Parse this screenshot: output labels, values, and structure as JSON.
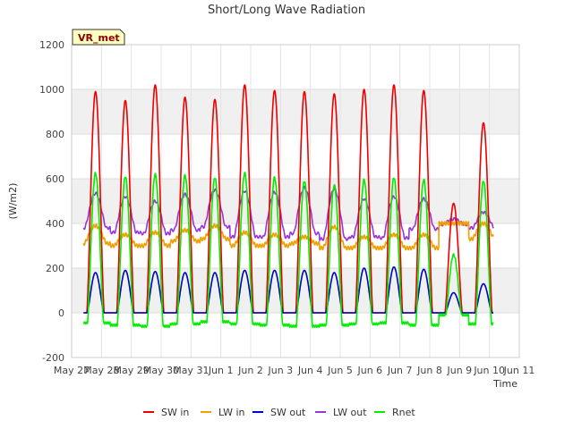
{
  "chart_data": {
    "type": "line",
    "title": "Short/Long Wave Radiation",
    "xlabel": "Time",
    "ylabel": "(W/m2)",
    "badge": "VR_met",
    "xlim": [
      0,
      15
    ],
    "ylim": [
      -200,
      1200
    ],
    "yticks": [
      -200,
      0,
      200,
      400,
      600,
      800,
      1000,
      1200
    ],
    "xticks": [
      {
        "v": 0,
        "label": "May 27"
      },
      {
        "v": 1,
        "label": "May 28"
      },
      {
        "v": 2,
        "label": "May 29"
      },
      {
        "v": 3,
        "label": "May 30"
      },
      {
        "v": 4,
        "label": "May 31"
      },
      {
        "v": 5,
        "label": "Jun 1"
      },
      {
        "v": 6,
        "label": "Jun 2"
      },
      {
        "v": 7,
        "label": "Jun 3"
      },
      {
        "v": 8,
        "label": "Jun 4"
      },
      {
        "v": 9,
        "label": "Jun 5"
      },
      {
        "v": 10,
        "label": "Jun 6"
      },
      {
        "v": 11,
        "label": "Jun 7"
      },
      {
        "v": 12,
        "label": "Jun 8"
      },
      {
        "v": 13,
        "label": "Jun 9"
      },
      {
        "v": 14,
        "label": "Jun 10"
      },
      {
        "v": 15,
        "label": "Jun 11"
      }
    ],
    "grid": true,
    "legend_position": "bottom",
    "daily": {
      "days": [
        0.8,
        1.8,
        2.8,
        3.8,
        4.8,
        5.8,
        6.8,
        7.8,
        8.8,
        9.8,
        10.8,
        11.8,
        12.8,
        13.8
      ],
      "sw_in_peak": [
        990,
        950,
        1020,
        965,
        955,
        1020,
        995,
        990,
        980,
        1000,
        1020,
        995,
        490,
        850
      ],
      "lw_in_day": [
        390,
        350,
        360,
        370,
        390,
        360,
        350,
        340,
        385,
        340,
        350,
        350,
        400,
        400
      ],
      "lw_in_night": [
        310,
        300,
        300,
        320,
        330,
        300,
        300,
        310,
        290,
        290,
        290,
        290,
        400,
        330
      ],
      "lw_out_day": [
        535,
        520,
        500,
        530,
        550,
        545,
        540,
        560,
        555,
        510,
        520,
        510,
        420,
        450
      ],
      "lw_out_night": [
        380,
        360,
        355,
        370,
        385,
        340,
        340,
        355,
        330,
        340,
        335,
        375,
        395,
        380
      ],
      "sw_out_peak": [
        180,
        190,
        185,
        180,
        180,
        190,
        190,
        190,
        180,
        200,
        205,
        195,
        90,
        130
      ],
      "rnet_peak": [
        625,
        610,
        620,
        615,
        605,
        625,
        605,
        590,
        570,
        595,
        605,
        595,
        260,
        590
      ],
      "rnet_night": [
        -45,
        -55,
        -60,
        -50,
        -40,
        -50,
        -55,
        -60,
        -55,
        -50,
        -45,
        -55,
        -10,
        -50
      ]
    },
    "series": [
      {
        "name": "SW in",
        "color": "#ee0000"
      },
      {
        "name": "LW in",
        "color": "#f0a000"
      },
      {
        "name": "SW out",
        "color": "#0000cc"
      },
      {
        "name": "LW out",
        "color": "#9933dd"
      },
      {
        "name": "Rnet",
        "color": "#00ee00"
      }
    ]
  }
}
